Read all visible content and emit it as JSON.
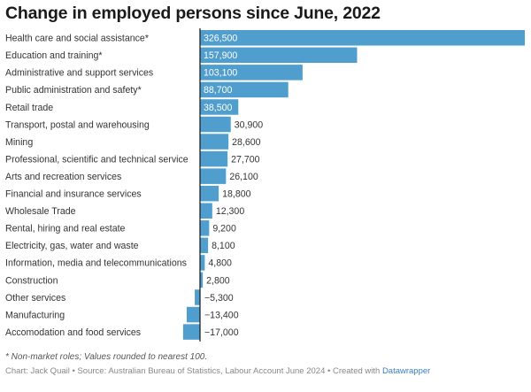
{
  "chart_data": {
    "type": "bar",
    "orientation": "horizontal",
    "title": "Change in employed persons since June, 2022",
    "categories": [
      "Health care and social assistance*",
      "Education and training*",
      "Administrative and support services",
      "Public administration and safety*",
      "Retail trade",
      "Transport, postal and warehousing",
      "Mining",
      "Professional, scientific and technical service",
      "Arts and recreation services",
      "Financial and insurance services",
      "Wholesale Trade",
      "Rental, hiring and real estate",
      "Electricity, gas, water and waste",
      "Information, media and telecommunications",
      "Construction",
      "Other services",
      "Manufacturing",
      "Accomodation and food services"
    ],
    "values": [
      326500,
      157900,
      103100,
      88700,
      38500,
      30900,
      28600,
      27700,
      26100,
      18800,
      12300,
      9200,
      8100,
      4800,
      2800,
      -5300,
      -13400,
      -17000
    ],
    "value_labels": [
      "326,500",
      "157,900",
      "103,100",
      "88,700",
      "38,500",
      "30,900",
      "28,600",
      "27,700",
      "26,100",
      "18,800",
      "12,300",
      "9,200",
      "8,100",
      "4,800",
      "2,800",
      "−5,300",
      "−13,400",
      "−17,000"
    ],
    "xlim": [
      -17000,
      326500
    ],
    "bar_color": "#509ece",
    "axis_color": "#222222"
  },
  "footnote": "* Non-market roles; Values rounded to nearest 100.",
  "credits": {
    "text": "Chart: Jack Quail • Source: Australian Bureau of Statistics, Labour Account June 2024 • Created with ",
    "link": "Datawrapper"
  }
}
